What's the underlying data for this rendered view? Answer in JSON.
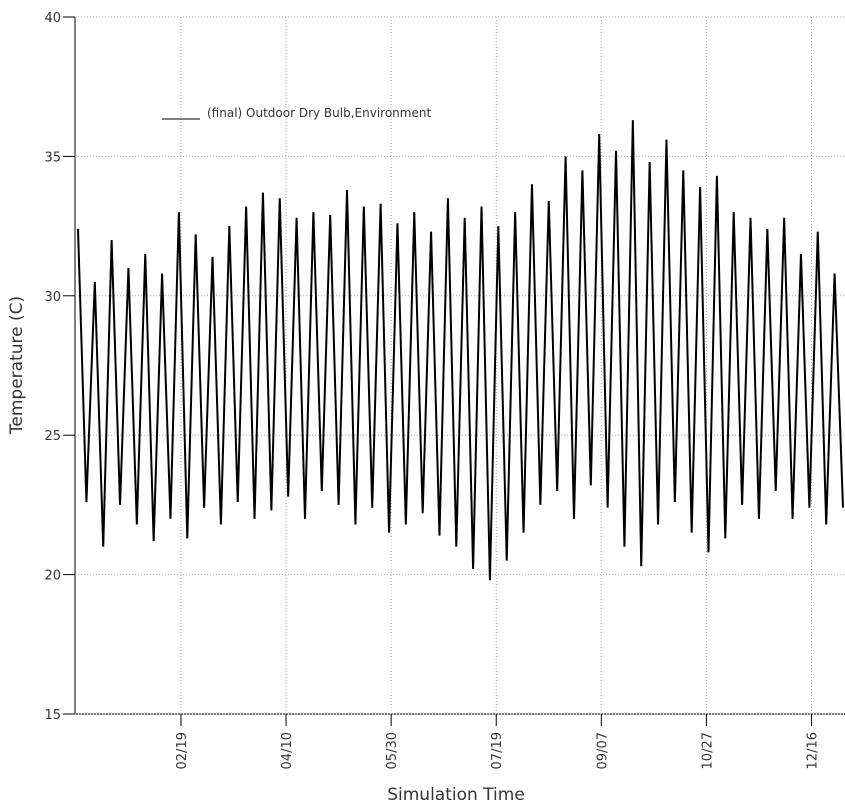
{
  "chart_data": {
    "type": "line",
    "y_label": "Temperature (C)",
    "x_label": "Simulation Time",
    "x": [
      "01/01",
      "01/05",
      "01/09",
      "01/13",
      "01/17",
      "01/21",
      "01/25",
      "01/29",
      "02/02",
      "02/06",
      "02/10",
      "02/14",
      "02/18",
      "02/22",
      "02/26",
      "03/02",
      "03/06",
      "03/10",
      "03/14",
      "03/18",
      "03/22",
      "03/26",
      "03/30",
      "04/03",
      "04/07",
      "04/11",
      "04/15",
      "04/19",
      "04/23",
      "04/27",
      "05/01",
      "05/05",
      "05/09",
      "05/13",
      "05/17",
      "05/21",
      "05/25",
      "05/29",
      "06/02",
      "06/06",
      "06/10",
      "06/14",
      "06/18",
      "06/22",
      "06/26",
      "06/30",
      "07/04",
      "07/08",
      "07/12",
      "07/16",
      "07/20",
      "07/24",
      "07/28",
      "08/01",
      "08/05",
      "08/09",
      "08/13",
      "08/17",
      "08/21",
      "08/25",
      "08/29",
      "09/02",
      "09/06",
      "09/10",
      "09/14",
      "09/18",
      "09/22",
      "09/26",
      "09/30",
      "10/04",
      "10/08",
      "10/12",
      "10/16",
      "10/20",
      "10/24",
      "10/28",
      "11/01",
      "11/05",
      "11/09",
      "11/13",
      "11/17",
      "11/21",
      "11/25",
      "11/29",
      "12/03",
      "12/07",
      "12/11",
      "12/15",
      "12/19",
      "12/23",
      "12/27",
      "12/31"
    ],
    "series": [
      {
        "name": "(final) Outdoor Dry Bulb,Environment",
        "color": "#000000",
        "values": [
          32.4,
          22.6,
          30.5,
          21.0,
          32.0,
          22.5,
          31.0,
          21.8,
          31.5,
          21.2,
          30.8,
          22.0,
          33.0,
          21.3,
          32.2,
          22.4,
          31.4,
          21.8,
          32.5,
          22.6,
          33.2,
          22.0,
          33.7,
          22.3,
          33.5,
          22.8,
          32.8,
          22.0,
          33.0,
          23.0,
          32.9,
          22.5,
          33.8,
          21.8,
          33.2,
          22.4,
          33.3,
          21.5,
          32.6,
          21.8,
          33.0,
          22.2,
          32.3,
          21.4,
          33.5,
          21.0,
          32.8,
          20.2,
          33.2,
          19.8,
          32.5,
          20.5,
          33.0,
          21.5,
          34.0,
          22.5,
          33.4,
          23.0,
          35.0,
          22.0,
          34.5,
          23.2,
          35.8,
          22.4,
          35.2,
          21.0,
          36.3,
          20.3,
          34.8,
          21.8,
          35.6,
          22.6,
          34.5,
          21.5,
          33.9,
          20.8,
          34.3,
          21.3,
          33.0,
          22.5,
          32.8,
          22.0,
          32.4,
          23.0,
          32.8,
          22.0,
          31.5,
          22.4,
          32.3,
          21.8,
          30.8,
          22.4
        ]
      }
    ],
    "xlim": [
      "01/01",
      "12/31"
    ],
    "xticks": [
      "02/19",
      "04/10",
      "05/30",
      "07/19",
      "09/07",
      "10/27",
      "12/16"
    ],
    "ylim": [
      15,
      40
    ],
    "yticks": [
      15,
      20,
      25,
      30,
      35,
      40
    ],
    "grid": true
  }
}
